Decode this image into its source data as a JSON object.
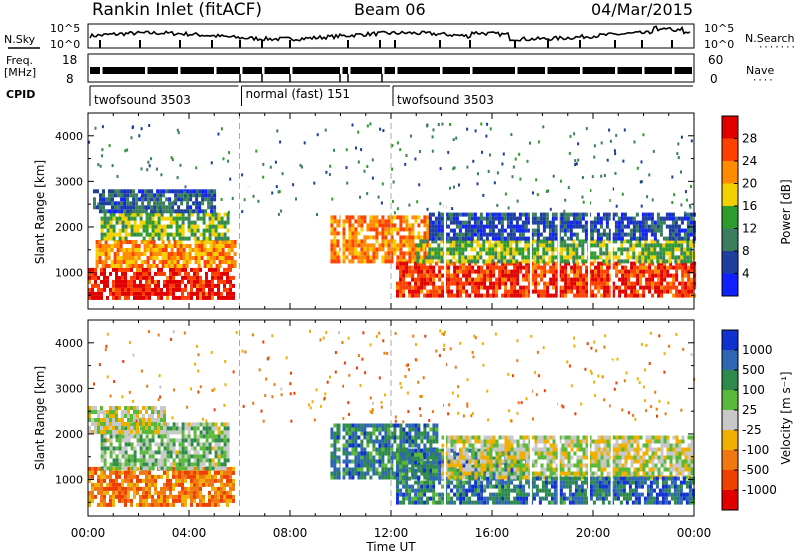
{
  "header": {
    "radar": "Rankin Inlet (fitACF)",
    "beam": "Beam 06",
    "date": "04/Mar/2015"
  },
  "status_panels": {
    "nsky_label": "N.Sky",
    "nsearch_label": "N.Search",
    "noise_ticks_left": [
      "10^5",
      "10^0"
    ],
    "noise_ticks_right": [
      "10^5",
      "10^0"
    ],
    "freq_label": "Freq.",
    "freq_unit": "[MHz]",
    "freq_ticks": [
      "18",
      "8"
    ],
    "nave_label": "Nave",
    "nave_ticks": [
      "60",
      "0"
    ],
    "cpid_label": "CPID",
    "cpid_segments": [
      {
        "label": "twofsound 3503",
        "start": 0,
        "end": 6
      },
      {
        "label": "normal (fast) 151",
        "start": 6,
        "end": 12
      },
      {
        "label": "twofsound 3503",
        "start": 12,
        "end": 24
      }
    ]
  },
  "chart_data": [
    {
      "type": "heatmap",
      "name": "power",
      "xlabel": "",
      "ylabel": "Slant Range [km]",
      "ylim": [
        200,
        4500
      ],
      "xlim": [
        0,
        24
      ],
      "yticks": [
        "1000",
        "2000",
        "3000",
        "4000"
      ],
      "colorbar_label": "Power [dB]",
      "colorbar_ticks": [
        "28",
        "24",
        "20",
        "16",
        "12",
        "8",
        "4"
      ],
      "colorbar_colors": [
        "#e00000",
        "#ff4000",
        "#ff8c00",
        "#f5d000",
        "#2e9b2e",
        "#3a7e5e",
        "#1f3f9f",
        "#1020ff"
      ],
      "regions": [
        {
          "t0": 0.0,
          "t1": 5.8,
          "r0": 400,
          "r1": 1100,
          "level": 0.95
        },
        {
          "t0": 0.3,
          "t1": 5.8,
          "r0": 1100,
          "r1": 1700,
          "level": 0.7
        },
        {
          "t0": 0.5,
          "t1": 5.6,
          "r0": 1700,
          "r1": 2300,
          "level": 0.45
        },
        {
          "t0": 0.2,
          "t1": 5.0,
          "r0": 2300,
          "r1": 2800,
          "level": 0.2
        },
        {
          "t0": 9.6,
          "t1": 13.5,
          "r0": 1200,
          "r1": 2200,
          "level": 0.75
        },
        {
          "t0": 12.2,
          "t1": 24.0,
          "r0": 450,
          "r1": 1200,
          "level": 0.9
        },
        {
          "t0": 13.0,
          "t1": 24.0,
          "r0": 1200,
          "r1": 1700,
          "level": 0.45
        },
        {
          "t0": 13.5,
          "t1": 24.0,
          "r0": 1700,
          "r1": 2300,
          "level": 0.15
        }
      ]
    },
    {
      "type": "heatmap",
      "name": "velocity",
      "xlabel": "Time UT",
      "ylabel": "Slant Range [km]",
      "ylim": [
        200,
        4500
      ],
      "xlim": [
        0,
        24
      ],
      "xticks": [
        "00:00",
        "04:00",
        "08:00",
        "12:00",
        "16:00",
        "20:00",
        "00:00"
      ],
      "yticks": [
        "1000",
        "2000",
        "3000",
        "4000"
      ],
      "colorbar_label": "Velocity [m s⁻¹]",
      "colorbar_ticks": [
        "1000",
        "500",
        "100",
        "25",
        "-25",
        "-100",
        "-500",
        "-1000"
      ],
      "colorbar_colors": [
        "#1030d0",
        "#2f66b4",
        "#2e8a4a",
        "#5ab83a",
        "#c8c8c8",
        "#f0b000",
        "#f07810",
        "#f04000",
        "#e00000"
      ],
      "regions": [
        {
          "t0": 0.0,
          "t1": 5.8,
          "r0": 400,
          "r1": 1200,
          "level": 0.25
        },
        {
          "t0": 0.5,
          "t1": 5.6,
          "r0": 1200,
          "r1": 2200,
          "level": 0.6
        },
        {
          "t0": 0.0,
          "t1": 3.0,
          "r0": 2000,
          "r1": 2600,
          "level": 0.5
        },
        {
          "t0": 9.6,
          "t1": 13.8,
          "r0": 1000,
          "r1": 2200,
          "level": 0.8
        },
        {
          "t0": 12.2,
          "t1": 17.5,
          "r0": 450,
          "r1": 1600,
          "level": 0.82
        },
        {
          "t0": 14.0,
          "t1": 23.9,
          "r0": 1000,
          "r1": 1900,
          "level": 0.5
        },
        {
          "t0": 17.5,
          "t1": 24.0,
          "r0": 450,
          "r1": 1000,
          "level": 0.85
        }
      ]
    }
  ]
}
